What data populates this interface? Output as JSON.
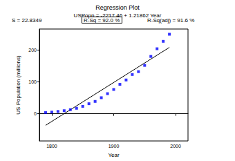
{
  "chart_data": {
    "type": "scatter",
    "title": "Regression Plot",
    "subtitle": "USPopn = -2217.46 + 1.21862 Year",
    "annotations": [
      "S = 22.8349",
      "R-Sq = 92.0 %",
      "R-Sq(adj) = 91.6 %"
    ],
    "x_label": "Year",
    "y_label": "US Population (millions)",
    "x": [
      1790,
      1800,
      1810,
      1820,
      1830,
      1840,
      1850,
      1860,
      1870,
      1880,
      1890,
      1900,
      1910,
      1920,
      1930,
      1940,
      1950,
      1960,
      1970,
      1980,
      1990
    ],
    "values": [
      3.9,
      5.3,
      7.2,
      9.6,
      12.9,
      17.1,
      23.2,
      31.4,
      38.6,
      50.2,
      62.9,
      76.0,
      92.0,
      105.7,
      122.8,
      131.7,
      151.3,
      179.3,
      203.3,
      226.5,
      248.7
    ],
    "color": "#0000ff",
    "marker": "square",
    "fit_line": {
      "x": [
        1790,
        1990
      ],
      "values": [
        -36.13,
        207.59
      ],
      "color": "#000000",
      "line_style": "solid"
    },
    "xlim": [
      1780,
      2020
    ],
    "xticks": [
      1800,
      1900,
      2000
    ],
    "ylim": [
      -85,
      265
    ],
    "yticks": [
      0,
      100,
      200
    ],
    "grid": false
  }
}
